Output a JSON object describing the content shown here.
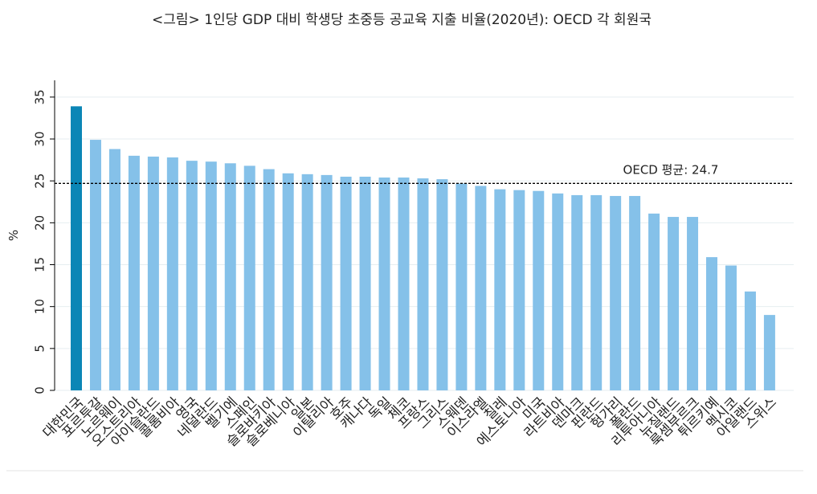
{
  "chart_data": {
    "type": "bar",
    "title": "<그림> 1인당 GDP 대비 학생당 초중등 공교육 지출 비율(2020년): OECD 각 회원국",
    "y_label": "%",
    "categories": [
      "대한민국",
      "포르투갈",
      "노르웨이",
      "오스트리아",
      "아이슬란드",
      "콜롬비아",
      "영국",
      "네덜란드",
      "벨기에",
      "스페인",
      "슬로바키아",
      "슬로베니아",
      "일본",
      "이탈리아",
      "호주",
      "캐나다",
      "독일",
      "체코",
      "프랑스",
      "그리스",
      "스웨덴",
      "이스라엘",
      "칠레",
      "에스토니아",
      "미국",
      "라트비아",
      "덴마크",
      "핀란드",
      "헝가리",
      "폴란드",
      "리투아니아",
      "뉴질랜드",
      "룩셈부르크",
      "튀르키예",
      "멕시코",
      "아일랜드",
      "스위스"
    ],
    "values": [
      33.9,
      29.9,
      28.8,
      28.0,
      27.9,
      27.8,
      27.4,
      27.3,
      27.1,
      26.8,
      26.4,
      25.9,
      25.8,
      25.7,
      25.5,
      25.5,
      25.4,
      25.4,
      25.3,
      25.2,
      24.7,
      24.4,
      24.0,
      23.9,
      23.8,
      23.5,
      23.3,
      23.3,
      23.2,
      23.2,
      21.1,
      20.7,
      20.7,
      15.9,
      14.9,
      11.8,
      9.0
    ],
    "colors": [
      "#0b86b6",
      "#85c1e9",
      "#85c1e9",
      "#85c1e9",
      "#85c1e9",
      "#85c1e9",
      "#85c1e9",
      "#85c1e9",
      "#85c1e9",
      "#85c1e9",
      "#85c1e9",
      "#85c1e9",
      "#85c1e9",
      "#85c1e9",
      "#85c1e9",
      "#85c1e9",
      "#85c1e9",
      "#85c1e9",
      "#85c1e9",
      "#85c1e9",
      "#85c1e9",
      "#85c1e9",
      "#85c1e9",
      "#85c1e9",
      "#85c1e9",
      "#85c1e9",
      "#85c1e9",
      "#85c1e9",
      "#85c1e9",
      "#85c1e9",
      "#85c1e9",
      "#85c1e9",
      "#85c1e9",
      "#85c1e9",
      "#85c1e9",
      "#85c1e9",
      "#85c1e9"
    ],
    "average": {
      "label": "OECD 평균: 24.7",
      "value": 24.7
    },
    "ylim": [
      0,
      37
    ],
    "yticks": [
      0,
      5,
      10,
      15,
      20,
      25,
      30,
      35
    ],
    "grid": true
  }
}
